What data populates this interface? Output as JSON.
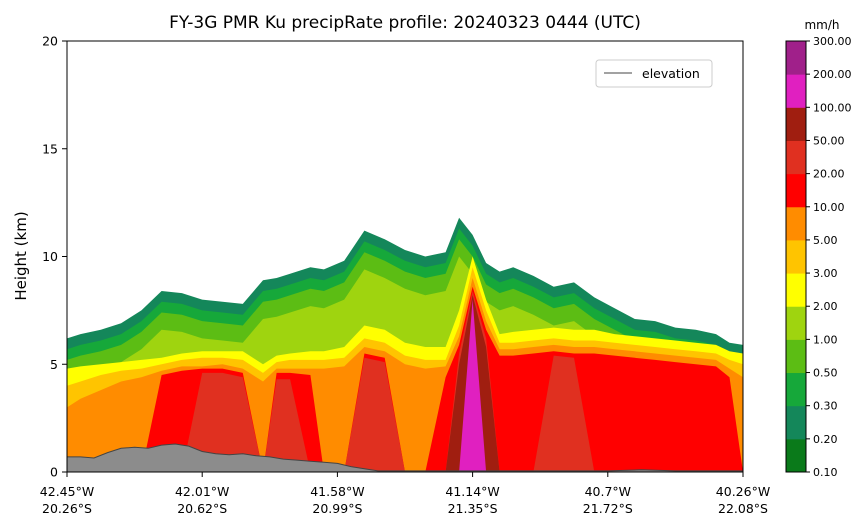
{
  "chart_data": {
    "type": "heatmap",
    "title": "FY-3G PMR Ku precipRate profile: 20240323 0444 (UTC)",
    "xlabel": "",
    "ylabel": "Height (km)",
    "ylim": [
      0,
      20
    ],
    "yticks": [
      "0",
      "5",
      "10",
      "15",
      "20"
    ],
    "xticks": [
      {
        "lon": "42.45°W",
        "lat": "20.26°S"
      },
      {
        "lon": "42.01°W",
        "lat": "20.62°S"
      },
      {
        "lon": "41.58°W",
        "lat": "20.99°S"
      },
      {
        "lon": "41.14°W",
        "lat": "21.35°S"
      },
      {
        "lon": "40.7°W",
        "lat": "21.72°S"
      },
      {
        "lon": "40.26°W",
        "lat": "22.08°S"
      }
    ],
    "legend": {
      "entries": [
        "elevation"
      ],
      "placement": "upper-right"
    },
    "colorbar": {
      "unit": "mm/h",
      "levels": [
        "0.10",
        "0.20",
        "0.30",
        "0.50",
        "1.00",
        "2.00",
        "3.00",
        "5.00",
        "10.00",
        "20.00",
        "50.00",
        "100.00",
        "200.00",
        "300.00"
      ],
      "colors": [
        "#0a7a1a",
        "#14875a",
        "#16a83a",
        "#5cbd14",
        "#9fd40f",
        "#ffff00",
        "#ffc400",
        "#ff8c00",
        "#ff0000",
        "#e03020",
        "#a01e10",
        "#e020c0",
        "#a0208a"
      ]
    },
    "profile_x": [
      0,
      0.02,
      0.05,
      0.08,
      0.11,
      0.14,
      0.17,
      0.2,
      0.23,
      0.26,
      0.29,
      0.31,
      0.33,
      0.36,
      0.38,
      0.41,
      0.44,
      0.47,
      0.5,
      0.53,
      0.56,
      0.58,
      0.6,
      0.62,
      0.64,
      0.66,
      0.69,
      0.72,
      0.75,
      0.78,
      0.81,
      0.84,
      0.87,
      0.9,
      0.93,
      0.96,
      0.98,
      1.0
    ],
    "cloud_top_km": [
      6.2,
      6.4,
      6.6,
      6.9,
      7.5,
      8.4,
      8.3,
      8.0,
      7.9,
      7.8,
      8.9,
      9.0,
      9.2,
      9.5,
      9.4,
      9.8,
      11.2,
      10.8,
      10.3,
      10.0,
      10.2,
      11.8,
      11.0,
      9.7,
      9.3,
      9.5,
      9.1,
      8.6,
      8.8,
      8.1,
      7.6,
      7.1,
      7.0,
      6.7,
      6.6,
      6.4,
      6.0,
      5.9
    ],
    "core_km": [
      [
        0,
        0,
        0,
        0,
        0,
        0,
        0,
        0,
        0,
        0,
        0,
        0,
        0,
        0,
        0,
        0,
        0,
        0,
        0,
        0,
        0,
        0,
        0,
        0,
        0,
        0,
        0,
        0,
        0,
        0,
        0,
        0,
        0,
        0,
        0,
        0,
        0,
        0
      ],
      [
        4.8,
        4.9,
        5.0,
        5.1,
        5.2,
        5.3,
        5.5,
        5.6,
        5.6,
        5.6,
        5.0,
        5.4,
        5.5,
        5.6,
        5.6,
        5.8,
        6.8,
        6.6,
        6.0,
        5.8,
        5.8,
        7.5,
        10.0,
        8.0,
        6.4,
        6.5,
        6.6,
        6.7,
        6.6,
        6.6,
        6.4,
        6.3,
        6.2,
        6.1,
        6.0,
        5.9,
        5.6,
        5.5
      ],
      [
        4.0,
        4.2,
        4.5,
        4.7,
        4.8,
        5.0,
        5.2,
        5.3,
        5.3,
        5.2,
        4.6,
        5.1,
        5.2,
        5.2,
        5.2,
        5.3,
        6.2,
        6.0,
        5.4,
        5.2,
        5.2,
        6.8,
        9.5,
        7.5,
        6.0,
        6.0,
        6.1,
        6.2,
        6.1,
        6.1,
        6.0,
        5.9,
        5.8,
        5.7,
        5.6,
        5.5,
        5.2,
        5.0
      ],
      [
        3.0,
        3.4,
        3.8,
        4.2,
        4.4,
        4.7,
        4.9,
        4.9,
        5.0,
        4.8,
        4.2,
        4.8,
        4.8,
        4.8,
        4.8,
        4.9,
        5.8,
        5.6,
        5.0,
        4.8,
        4.9,
        6.3,
        9.0,
        7.0,
        5.7,
        5.7,
        5.8,
        5.9,
        5.8,
        5.8,
        5.7,
        5.6,
        5.5,
        5.4,
        5.3,
        5.2,
        4.8,
        4.4
      ],
      [
        0,
        0,
        0,
        0,
        0,
        4.5,
        4.7,
        4.8,
        4.8,
        4.6,
        0,
        4.6,
        4.6,
        4.5,
        0,
        0,
        5.5,
        5.3,
        0,
        0,
        4.4,
        5.9,
        8.6,
        6.6,
        5.4,
        5.4,
        5.5,
        5.6,
        5.5,
        5.5,
        5.4,
        5.3,
        5.2,
        5.1,
        5.0,
        4.9,
        4.4,
        0
      ],
      [
        0,
        0,
        0,
        0,
        0,
        0,
        0,
        4.6,
        4.6,
        4.4,
        0,
        4.3,
        4.3,
        0,
        0,
        0,
        5.3,
        5.1,
        0,
        0,
        0,
        5.5,
        8.4,
        6.2,
        0,
        0,
        0,
        5.4,
        5.3,
        0,
        0,
        0,
        0,
        0,
        0,
        0,
        0,
        0
      ],
      [
        0,
        0,
        0,
        0,
        0,
        0,
        0,
        0,
        0,
        0,
        0,
        0,
        0,
        0,
        0,
        0,
        0,
        0,
        0,
        0,
        0,
        5.0,
        8.2,
        5.8,
        0,
        0,
        0,
        0,
        0,
        0,
        0,
        0,
        0,
        0,
        0,
        0,
        0,
        0
      ],
      [
        0,
        0,
        0,
        0,
        0,
        0,
        0,
        0,
        0,
        0,
        0,
        0,
        0,
        0,
        0,
        0,
        0,
        0,
        0,
        0,
        0,
        0,
        8.0,
        0,
        0,
        0,
        0,
        0,
        0,
        0,
        0,
        0,
        0,
        0,
        0,
        0,
        0,
        0
      ]
    ],
    "elevation_x": [
      0,
      0.02,
      0.04,
      0.06,
      0.08,
      0.1,
      0.12,
      0.14,
      0.16,
      0.18,
      0.2,
      0.22,
      0.24,
      0.26,
      0.28,
      0.3,
      0.32,
      0.34,
      0.36,
      0.38,
      0.4,
      0.42,
      0.44,
      0.46,
      0.5,
      0.55,
      0.6,
      0.65,
      0.7,
      0.75,
      0.8,
      0.85,
      0.9,
      0.95,
      1.0
    ],
    "elevation_km": [
      0.7,
      0.7,
      0.65,
      0.9,
      1.1,
      1.15,
      1.1,
      1.25,
      1.3,
      1.2,
      0.95,
      0.85,
      0.8,
      0.85,
      0.75,
      0.7,
      0.6,
      0.55,
      0.5,
      0.45,
      0.4,
      0.25,
      0.15,
      0.05,
      0.05,
      0.05,
      0.05,
      0.05,
      0.05,
      0.05,
      0.05,
      0.1,
      0.05,
      0.05,
      0.05
    ]
  }
}
